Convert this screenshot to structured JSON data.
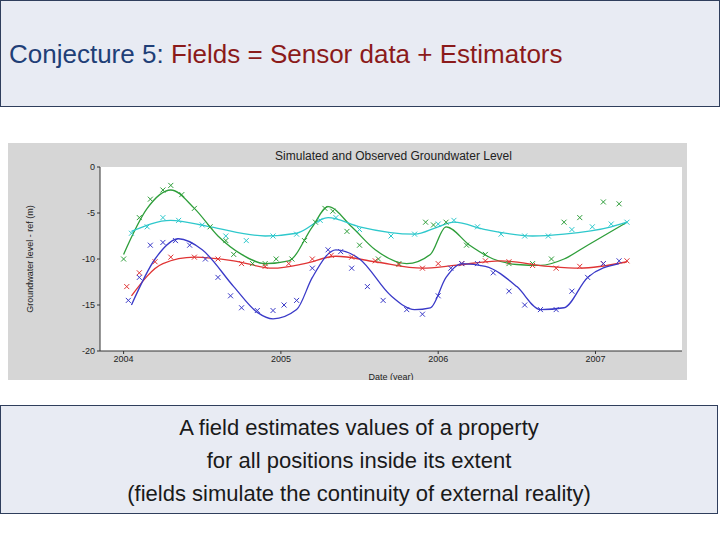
{
  "slide": {
    "title": [
      "Conjecture 5:",
      "Fields = Sensor data + Estimators"
    ],
    "caption": [
      "A field estimates values of a property",
      "for all positions inside its extent",
      "(fields simulate the continuity of external reality)"
    ]
  },
  "chart_data": {
    "type": "line",
    "title": "Simulated and Observed Groundwater Level",
    "xlabel": "Date (year)",
    "ylabel": "Groundwater level - ref (m)",
    "xlim": [
      2003.85,
      2007.55
    ],
    "xticks": [
      2004,
      2005,
      2006,
      2007
    ],
    "ylim": [
      -20,
      0
    ],
    "yticks": [
      -20,
      -15,
      -10,
      -5,
      0
    ],
    "grid": false,
    "series": [
      {
        "type": "line",
        "line_style": "solid",
        "color": "#2e9e3a",
        "x": [
          2004.0,
          2004.15,
          2004.3,
          2004.45,
          2004.6,
          2004.75,
          2004.9,
          2005.05,
          2005.2,
          2005.3,
          2005.45,
          2005.6,
          2005.8,
          2005.95,
          2006.05,
          2006.2,
          2006.35,
          2006.5,
          2006.65,
          2006.8,
          2006.95,
          2007.2
        ],
        "values": [
          -9.5,
          -4.5,
          -2.5,
          -4.5,
          -7.5,
          -9.5,
          -10.5,
          -10.2,
          -6.5,
          -4.3,
          -6.5,
          -9.0,
          -10.5,
          -9.5,
          -6.5,
          -8.5,
          -10.0,
          -10.6,
          -10.7,
          -10.0,
          -8.5,
          -6.0
        ]
      },
      {
        "type": "scatter",
        "marker": "x",
        "color": "#2e9e3a",
        "x": [
          2004.0,
          2004.1,
          2004.17,
          2004.25,
          2004.3,
          2004.37,
          2004.45,
          2004.55,
          2004.65,
          2004.7,
          2004.82,
          2004.9,
          2004.97,
          2005.07,
          2005.15,
          2005.22,
          2005.28,
          2005.33,
          2005.42,
          2005.5,
          2005.62,
          2005.75,
          2005.92,
          2005.97,
          2006.05,
          2006.18,
          2006.3,
          2006.45,
          2006.6,
          2006.72,
          2006.8,
          2006.9,
          2007.05,
          2007.15
        ],
        "values": [
          -10,
          -5.5,
          -3.5,
          -2.5,
          -2,
          -3,
          -4.5,
          -6.5,
          -8,
          -9.5,
          -10.5,
          -10.5,
          -10,
          -10,
          -8,
          -6,
          -4.5,
          -4.8,
          -7,
          -8.5,
          -10,
          -10.5,
          -6,
          -6.3,
          -6,
          -8.5,
          -9.5,
          -10.5,
          -10.5,
          -10,
          -6,
          -5.5,
          -3.8,
          -4
        ]
      },
      {
        "type": "line",
        "line_style": "solid",
        "color": "#2ec8cc",
        "x": [
          2004.05,
          2004.3,
          2004.55,
          2004.9,
          2005.1,
          2005.3,
          2005.5,
          2005.85,
          2006.0,
          2006.1,
          2006.3,
          2006.6,
          2006.8,
          2007.1,
          2007.2
        ],
        "values": [
          -7.0,
          -5.8,
          -6.5,
          -7.5,
          -7.2,
          -5.5,
          -6.5,
          -7.3,
          -6.5,
          -6.0,
          -6.8,
          -7.5,
          -7.3,
          -6.5,
          -6.0
        ]
      },
      {
        "type": "scatter",
        "marker": "x",
        "color": "#2ec8cc",
        "x": [
          2004.05,
          2004.15,
          2004.25,
          2004.35,
          2004.5,
          2004.65,
          2004.78,
          2004.95,
          2005.1,
          2005.25,
          2005.35,
          2005.5,
          2005.7,
          2005.85,
          2006.0,
          2006.1,
          2006.25,
          2006.4,
          2006.55,
          2006.7,
          2006.85,
          2006.98,
          2007.1,
          2007.2
        ],
        "values": [
          -7.2,
          -6.5,
          -5.5,
          -5.8,
          -6.3,
          -7.5,
          -8,
          -7.5,
          -7.3,
          -5.8,
          -5.5,
          -6.8,
          -7.5,
          -7.3,
          -6.2,
          -5.8,
          -6.5,
          -7.3,
          -7.5,
          -7.5,
          -6.8,
          -6.5,
          -6.2,
          -6
        ]
      },
      {
        "type": "line",
        "line_style": "solid",
        "color": "#e03434",
        "x": [
          2004.05,
          2004.25,
          2004.45,
          2004.7,
          2004.95,
          2005.15,
          2005.35,
          2005.6,
          2005.9,
          2006.1,
          2006.4,
          2006.7,
          2006.9,
          2007.2
        ],
        "values": [
          -14.0,
          -10.5,
          -9.8,
          -10.2,
          -11.0,
          -10.5,
          -9.7,
          -10.3,
          -11.0,
          -10.7,
          -10.2,
          -10.8,
          -11.0,
          -10.3
        ]
      },
      {
        "type": "scatter",
        "marker": "x",
        "color": "#e03434",
        "x": [
          2004.02,
          2004.1,
          2004.2,
          2004.3,
          2004.45,
          2004.6,
          2004.75,
          2004.9,
          2005.05,
          2005.2,
          2005.32,
          2005.45,
          2005.6,
          2005.75,
          2005.9,
          2006.0,
          2006.15,
          2006.3,
          2006.45,
          2006.6,
          2006.75,
          2006.9,
          2007.05,
          2007.2
        ],
        "values": [
          -13,
          -11.5,
          -10.3,
          -9.8,
          -9.8,
          -10,
          -10.5,
          -10.8,
          -10.5,
          -10,
          -9.6,
          -9.8,
          -10.2,
          -10.6,
          -11,
          -10.5,
          -10.5,
          -10.2,
          -10.3,
          -10.7,
          -11,
          -10.8,
          -10.5,
          -10.2
        ]
      },
      {
        "type": "line",
        "line_style": "solid",
        "color": "#3a3ac8",
        "x": [
          2004.05,
          2004.2,
          2004.35,
          2004.5,
          2004.7,
          2004.85,
          2004.95,
          2005.1,
          2005.2,
          2005.35,
          2005.5,
          2005.7,
          2005.85,
          2005.95,
          2006.05,
          2006.15,
          2006.3,
          2006.5,
          2006.65,
          2006.8,
          2006.95,
          2007.15
        ],
        "values": [
          -15.0,
          -10.0,
          -7.8,
          -9.0,
          -13.0,
          -15.8,
          -16.5,
          -15.5,
          -12.0,
          -9.0,
          -10.0,
          -14.0,
          -15.5,
          -15.3,
          -12.0,
          -10.5,
          -10.8,
          -13.0,
          -15.5,
          -15.3,
          -12.0,
          -10.5
        ]
      },
      {
        "type": "scatter",
        "marker": "x",
        "color": "#3a3ac8",
        "x": [
          2004.03,
          2004.1,
          2004.17,
          2004.25,
          2004.33,
          2004.42,
          2004.52,
          2004.6,
          2004.68,
          2004.75,
          2004.85,
          2004.95,
          2005.02,
          2005.1,
          2005.2,
          2005.3,
          2005.38,
          2005.45,
          2005.55,
          2005.65,
          2005.8,
          2005.9,
          2006.0,
          2006.08,
          2006.15,
          2006.25,
          2006.35,
          2006.45,
          2006.55,
          2006.65,
          2006.75,
          2006.85,
          2006.95,
          2007.05,
          2007.15
        ],
        "values": [
          -14.5,
          -12,
          -8.5,
          -8.2,
          -8,
          -8.5,
          -10,
          -12,
          -14,
          -15.3,
          -15.6,
          -15.6,
          -15,
          -14.5,
          -11,
          -9,
          -9.2,
          -11,
          -13,
          -14.5,
          -15.5,
          -16,
          -14,
          -11,
          -10.5,
          -10.5,
          -11.5,
          -13.5,
          -15,
          -15.5,
          -15.5,
          -13.5,
          -12,
          -10.5,
          -10.2
        ]
      }
    ]
  }
}
